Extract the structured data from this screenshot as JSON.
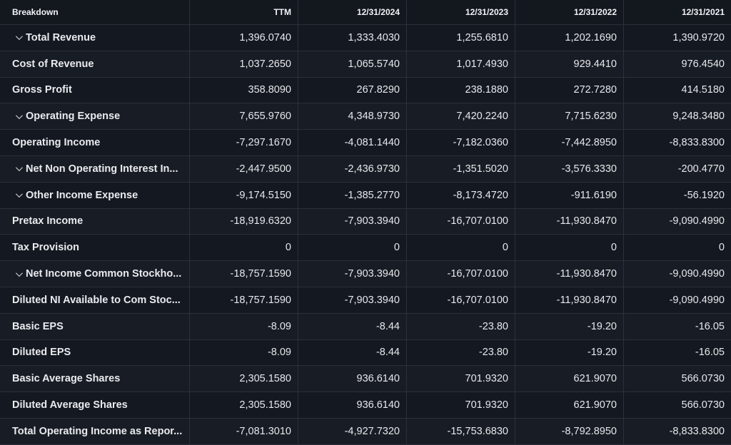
{
  "table": {
    "headers": [
      "Breakdown",
      "TTM",
      "12/31/2024",
      "12/31/2023",
      "12/31/2022",
      "12/31/2021"
    ],
    "rows": [
      {
        "label": "Total Revenue",
        "expandable": true,
        "values": [
          "1,396.0740",
          "1,333.4030",
          "1,255.6810",
          "1,202.1690",
          "1,390.9720"
        ]
      },
      {
        "label": "Cost of Revenue",
        "expandable": false,
        "values": [
          "1,037.2650",
          "1,065.5740",
          "1,017.4930",
          "929.4410",
          "976.4540"
        ]
      },
      {
        "label": "Gross Profit",
        "expandable": false,
        "values": [
          "358.8090",
          "267.8290",
          "238.1880",
          "272.7280",
          "414.5180"
        ]
      },
      {
        "label": "Operating Expense",
        "expandable": true,
        "values": [
          "7,655.9760",
          "4,348.9730",
          "7,420.2240",
          "7,715.6230",
          "9,248.3480"
        ]
      },
      {
        "label": "Operating Income",
        "expandable": false,
        "values": [
          "-7,297.1670",
          "-4,081.1440",
          "-7,182.0360",
          "-7,442.8950",
          "-8,833.8300"
        ]
      },
      {
        "label": "Net Non Operating Interest In...",
        "expandable": true,
        "values": [
          "-2,447.9500",
          "-2,436.9730",
          "-1,351.5020",
          "-3,576.3330",
          "-200.4770"
        ]
      },
      {
        "label": "Other Income Expense",
        "expandable": true,
        "values": [
          "-9,174.5150",
          "-1,385.2770",
          "-8,173.4720",
          "-911.6190",
          "-56.1920"
        ]
      },
      {
        "label": "Pretax Income",
        "expandable": false,
        "values": [
          "-18,919.6320",
          "-7,903.3940",
          "-16,707.0100",
          "-11,930.8470",
          "-9,090.4990"
        ]
      },
      {
        "label": "Tax Provision",
        "expandable": false,
        "values": [
          "0",
          "0",
          "0",
          "0",
          "0"
        ]
      },
      {
        "label": "Net Income Common Stockho...",
        "expandable": true,
        "values": [
          "-18,757.1590",
          "-7,903.3940",
          "-16,707.0100",
          "-11,930.8470",
          "-9,090.4990"
        ]
      },
      {
        "label": "Diluted NI Available to Com Stoc...",
        "expandable": false,
        "values": [
          "-18,757.1590",
          "-7,903.3940",
          "-16,707.0100",
          "-11,930.8470",
          "-9,090.4990"
        ]
      },
      {
        "label": "Basic EPS",
        "expandable": false,
        "values": [
          "-8.09",
          "-8.44",
          "-23.80",
          "-19.20",
          "-16.05"
        ]
      },
      {
        "label": "Diluted EPS",
        "expandable": false,
        "values": [
          "-8.09",
          "-8.44",
          "-23.80",
          "-19.20",
          "-16.05"
        ]
      },
      {
        "label": "Basic Average Shares",
        "expandable": false,
        "values": [
          "2,305.1580",
          "936.6140",
          "701.9320",
          "621.9070",
          "566.0730"
        ]
      },
      {
        "label": "Diluted Average Shares",
        "expandable": false,
        "values": [
          "2,305.1580",
          "936.6140",
          "701.9320",
          "621.9070",
          "566.0730"
        ]
      },
      {
        "label": "Total Operating Income as Repor...",
        "expandable": false,
        "values": [
          "-7,081.3010",
          "-4,927.7320",
          "-15,753.6830",
          "-8,792.8950",
          "-8,833.8300"
        ]
      }
    ]
  },
  "icons": {
    "expand": "chevron-down-icon"
  },
  "colors": {
    "background": "#141820",
    "border": "#2b303a",
    "text": "#e6e8ec"
  }
}
